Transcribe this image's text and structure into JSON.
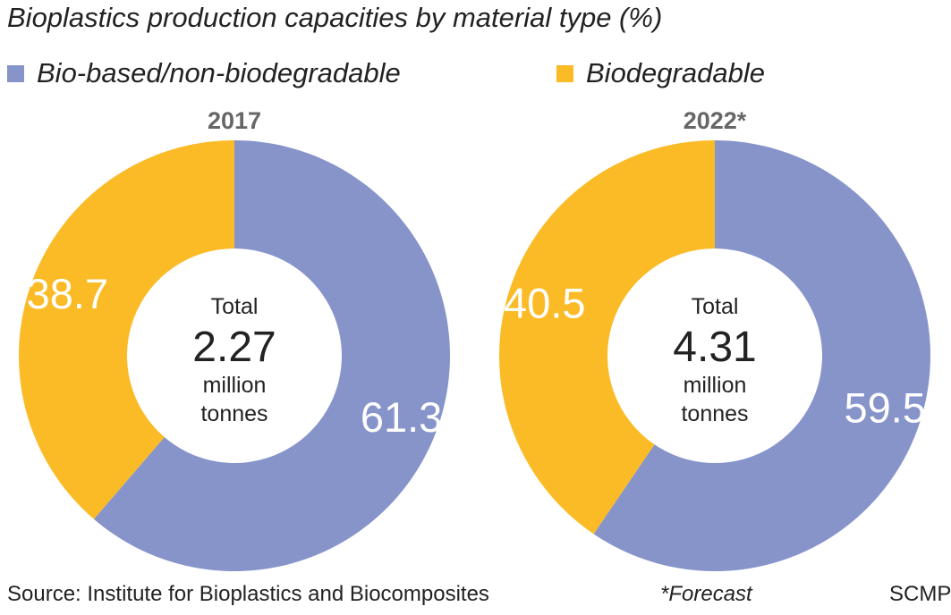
{
  "header": {
    "title": "Bioplastics production capacities by material type (%)"
  },
  "colors": {
    "bio_based": "#8694ca",
    "biodegradable": "#fbbb27",
    "year_label": "#666666",
    "text": "#222222"
  },
  "chart_data": [
    {
      "type": "pie",
      "title": "2017",
      "categories": [
        "Bio-based/non-biodegradable",
        "Biodegradable"
      ],
      "values": [
        61.3,
        38.7
      ],
      "value_labels": [
        "61.3",
        "38.7"
      ],
      "center_text": {
        "line1": "Total",
        "value": "2.27",
        "line3": "million",
        "line4": "tonnes"
      }
    },
    {
      "type": "pie",
      "title": "2022*",
      "categories": [
        "Bio-based/non-biodegradable",
        "Biodegradable"
      ],
      "values": [
        59.5,
        40.5
      ],
      "value_labels": [
        "59.5",
        "40.5"
      ],
      "center_text": {
        "line1": "Total",
        "value": "4.31",
        "line3": "million",
        "line4": "tonnes"
      }
    }
  ],
  "legend": [
    {
      "label": "Bio-based/non-biodegradable"
    },
    {
      "label": "Biodegradable"
    }
  ],
  "footer": {
    "source": "Source: Institute for Bioplastics and Biocomposites",
    "note": "*Forecast",
    "credit": "SCMP"
  }
}
